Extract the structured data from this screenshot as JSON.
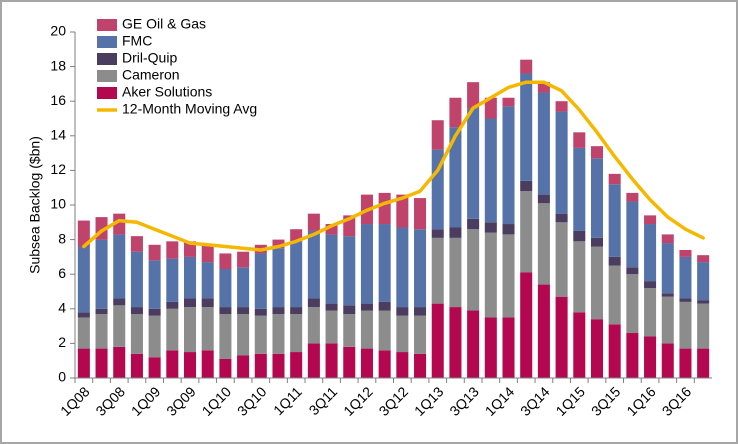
{
  "chart_data": {
    "type": "stacked-bar-line",
    "y_label": "Subsea Backlog ($bn)",
    "categories": [
      "1Q08",
      null,
      "3Q08",
      null,
      "1Q09",
      null,
      "3Q09",
      null,
      "1Q10",
      null,
      "3Q10",
      null,
      "1Q11",
      null,
      "3Q11",
      null,
      "1Q12",
      null,
      "3Q12",
      null,
      "1Q13",
      null,
      "3Q13",
      null,
      "1Q14",
      null,
      "3Q14",
      null,
      "1Q15",
      null,
      "3Q15",
      null,
      "1Q16",
      null,
      "3Q16",
      null
    ],
    "ylim": [
      0,
      20
    ],
    "yticks": [
      0,
      2,
      4,
      6,
      8,
      10,
      12,
      14,
      16,
      18,
      20
    ],
    "grid": false,
    "legend": "top-left",
    "series": [
      {
        "name": "Aker Solutions",
        "type": "bar",
        "color": "#b3084f",
        "values": [
          1.7,
          1.7,
          1.8,
          1.4,
          1.2,
          1.6,
          1.5,
          1.6,
          1.1,
          1.3,
          1.4,
          1.4,
          1.5,
          2.0,
          2.0,
          1.8,
          1.7,
          1.6,
          1.5,
          1.4,
          4.3,
          4.1,
          3.9,
          3.5,
          3.5,
          6.1,
          5.4,
          4.7,
          3.8,
          3.4,
          3.1,
          2.6,
          2.4,
          2.0,
          1.7,
          1.7
        ]
      },
      {
        "name": "Cameron",
        "type": "bar",
        "color": "#8c8c8c",
        "values": [
          1.8,
          2.0,
          2.4,
          2.3,
          2.4,
          2.4,
          2.6,
          2.5,
          2.6,
          2.4,
          2.2,
          2.3,
          2.2,
          2.1,
          1.9,
          1.9,
          2.2,
          2.3,
          2.1,
          2.2,
          3.8,
          4.0,
          4.7,
          4.9,
          4.8,
          4.7,
          4.7,
          4.3,
          4.1,
          4.2,
          3.4,
          3.4,
          2.8,
          2.7,
          2.7,
          2.6
        ]
      },
      {
        "name": "Dril-Quip",
        "type": "bar",
        "color": "#4b3d5f",
        "values": [
          0.3,
          0.3,
          0.4,
          0.4,
          0.4,
          0.4,
          0.5,
          0.5,
          0.4,
          0.4,
          0.4,
          0.4,
          0.4,
          0.5,
          0.4,
          0.5,
          0.4,
          0.5,
          0.5,
          0.5,
          0.5,
          0.6,
          0.6,
          0.6,
          0.6,
          0.6,
          0.5,
          0.5,
          0.6,
          0.5,
          0.5,
          0.4,
          0.4,
          0.2,
          0.2,
          0.2
        ]
      },
      {
        "name": "FMC",
        "type": "bar",
        "color": "#5572a9",
        "values": [
          3.8,
          4.0,
          3.7,
          3.2,
          2.8,
          2.5,
          2.4,
          2.1,
          2.2,
          2.3,
          3.2,
          3.4,
          3.8,
          3.9,
          4.0,
          4.0,
          4.6,
          4.5,
          4.6,
          4.5,
          4.6,
          5.8,
          6.4,
          6.0,
          6.8,
          6.2,
          5.9,
          5.9,
          4.8,
          4.6,
          4.2,
          3.8,
          3.3,
          2.9,
          2.4,
          2.2
        ]
      },
      {
        "name": "GE Oil & Gas",
        "type": "bar",
        "color": "#c0436c",
        "values": [
          1.5,
          1.3,
          1.2,
          0.9,
          0.9,
          1.0,
          0.9,
          1.0,
          0.9,
          0.9,
          0.5,
          0.5,
          0.7,
          1.0,
          0.6,
          1.2,
          1.7,
          1.8,
          1.9,
          1.8,
          1.7,
          1.7,
          1.5,
          1.2,
          0.5,
          0.8,
          0.6,
          0.6,
          0.9,
          0.7,
          0.6,
          0.5,
          0.5,
          0.5,
          0.4,
          0.4
        ]
      },
      {
        "name": "12-Month Moving Avg",
        "type": "line",
        "color": "#f5b800",
        "values": [
          7.6,
          8.5,
          9.1,
          9.0,
          8.6,
          8.2,
          7.8,
          7.7,
          7.6,
          7.5,
          7.4,
          7.6,
          7.9,
          8.3,
          8.8,
          9.2,
          9.7,
          10.1,
          10.4,
          10.8,
          12.0,
          14.0,
          15.6,
          16.2,
          16.8,
          17.1,
          17.1,
          16.6,
          15.5,
          14.2,
          12.8,
          11.5,
          10.3,
          9.3,
          8.6,
          8.1
        ]
      }
    ]
  }
}
